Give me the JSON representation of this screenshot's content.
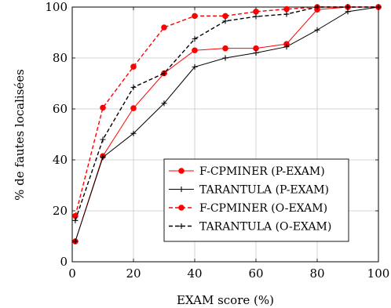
{
  "chart_data": {
    "type": "line",
    "title": "",
    "xlabel": "EXAM score (%)",
    "ylabel": "% de fautes localisées",
    "xlim": [
      0,
      100
    ],
    "ylim": [
      0,
      100
    ],
    "x_ticks": [
      0,
      20,
      40,
      60,
      80,
      100
    ],
    "y_ticks": [
      0,
      20,
      40,
      60,
      80,
      100
    ],
    "grid": true,
    "legend_position": "bottom-right",
    "series": [
      {
        "name": "F-CPMINER (P-EXAM)",
        "color": "#ff0000",
        "line": "solid",
        "marker": "circle",
        "x": [
          1,
          10,
          20,
          30,
          40,
          50,
          60,
          70,
          80,
          90,
          100
        ],
        "y": [
          8,
          41.5,
          60.3,
          74,
          83,
          83.8,
          83.8,
          85.5,
          99,
          100,
          100
        ]
      },
      {
        "name": "TARANTULA (P-EXAM)",
        "color": "#000000",
        "line": "solid",
        "marker": "plus",
        "x": [
          1,
          10,
          20,
          30,
          40,
          50,
          60,
          70,
          80,
          90,
          100
        ],
        "y": [
          8,
          41,
          50.4,
          62.2,
          76.5,
          80,
          82,
          84.4,
          91,
          98.2,
          100
        ]
      },
      {
        "name": "F-CPMINER (O-EXAM)",
        "color": "#ff0000",
        "line": "dashed",
        "marker": "circle",
        "x": [
          1,
          10,
          20,
          30,
          40,
          50,
          60,
          70,
          80,
          90,
          100
        ],
        "y": [
          18,
          60.5,
          76.6,
          92,
          96.5,
          96.5,
          98.2,
          99.2,
          100,
          100,
          100
        ]
      },
      {
        "name": "TARANTULA (O-EXAM)",
        "color": "#000000",
        "line": "dashed",
        "marker": "plus",
        "x": [
          1,
          10,
          20,
          30,
          40,
          50,
          60,
          70,
          80,
          90,
          100
        ],
        "y": [
          16.2,
          48,
          68.5,
          74,
          87.5,
          94.5,
          96.3,
          97.2,
          100,
          100,
          100
        ]
      }
    ]
  }
}
